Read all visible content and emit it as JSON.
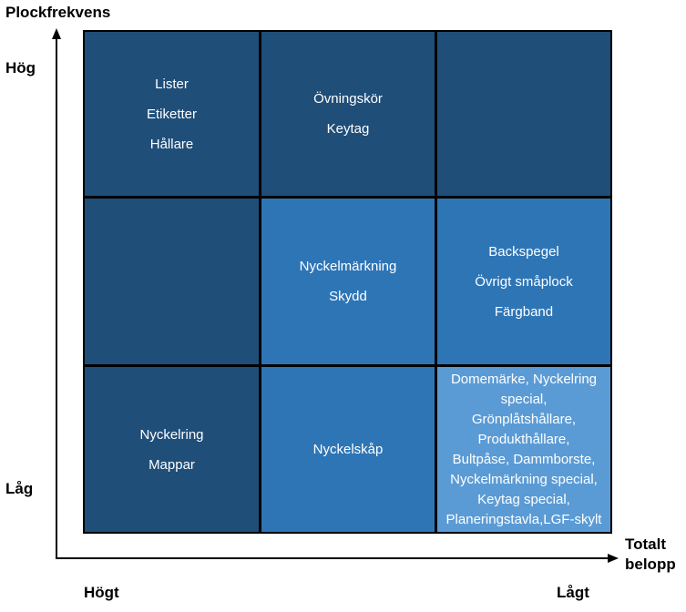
{
  "labels": {
    "y_axis_title": "Plockfrekvens",
    "y_high": "Hög",
    "y_low": "Låg",
    "x_axis_title_line1": "Totalt",
    "x_axis_title_line2": "belopp",
    "x_high": "Högt",
    "x_low": "Lågt"
  },
  "colors": {
    "dark": "#1f4e79",
    "mid": "#2e75b6",
    "light": "#5b9bd5"
  },
  "matrix": {
    "r0c0": [
      "Lister",
      "Etiketter",
      "Hållare"
    ],
    "r0c1": [
      "Övningskör",
      "Keytag"
    ],
    "r0c2": [],
    "r1c0": [],
    "r1c1": [
      "Nyckelmärkning",
      "Skydd"
    ],
    "r1c2": [
      "Backspegel",
      "Övrigt småplock",
      "Färgband"
    ],
    "r2c0": [
      "Nyckelring",
      "Mappar"
    ],
    "r2c1": [
      "Nyckelskåp"
    ],
    "r2c2": [
      "Domemärke, Nyckelring",
      "special,",
      "Grönplåtshållare,",
      "Produkthållare,",
      "Bultpåse, Dammborste,",
      "Nyckelmärkning special,",
      "Keytag special,",
      "Planeringstavla,LGF-skylt"
    ]
  }
}
